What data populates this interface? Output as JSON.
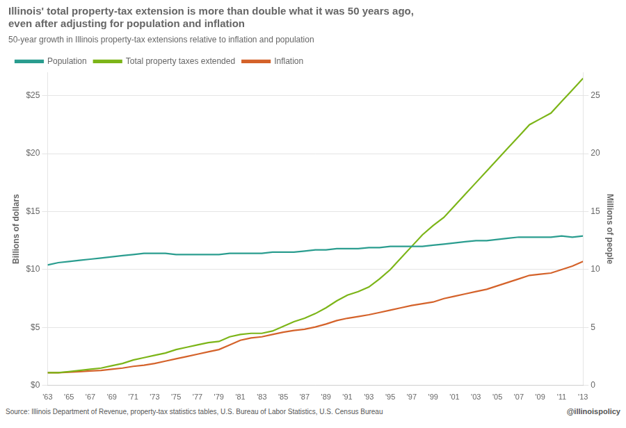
{
  "chart_data": {
    "type": "line",
    "title": "Illinois' total property-tax extension is more than double what it was 50 years ago,\neven after adjusting for population and inflation",
    "subtitle": "50-year growth in Illinois property-tax extensions relative to inflation and population",
    "ylabel": "Billions of dollars",
    "y2label": "Millions of people",
    "annotations": [
      "Source: Illinois Department of Revenue, property-tax statistics tables, U.S. Bureau of Labor Statistics, U.S. Census Bureau",
      "@illinoispolicy"
    ],
    "x": [
      1963,
      1964,
      1965,
      1966,
      1967,
      1968,
      1969,
      1970,
      1971,
      1972,
      1973,
      1974,
      1975,
      1976,
      1977,
      1978,
      1979,
      1980,
      1981,
      1982,
      1983,
      1984,
      1985,
      1986,
      1987,
      1988,
      1989,
      1990,
      1991,
      1992,
      1993,
      1994,
      1995,
      1996,
      1997,
      1998,
      1999,
      2000,
      2001,
      2002,
      2003,
      2004,
      2005,
      2006,
      2007,
      2008,
      2009,
      2010,
      2011,
      2012,
      2013
    ],
    "series": [
      {
        "name": "Population",
        "color": "#2a9d8f",
        "values": [
          10.4,
          10.6,
          10.7,
          10.8,
          10.9,
          11.0,
          11.1,
          11.2,
          11.3,
          11.4,
          11.4,
          11.4,
          11.3,
          11.3,
          11.3,
          11.3,
          11.3,
          11.4,
          11.4,
          11.4,
          11.4,
          11.5,
          11.5,
          11.5,
          11.6,
          11.7,
          11.7,
          11.8,
          11.8,
          11.8,
          11.9,
          11.9,
          12.0,
          12.0,
          12.0,
          12.0,
          12.1,
          12.2,
          12.3,
          12.4,
          12.5,
          12.5,
          12.6,
          12.7,
          12.8,
          12.8,
          12.8,
          12.8,
          12.9,
          12.8,
          12.9
        ]
      },
      {
        "name": "Total property taxes extended",
        "color": "#7cb518",
        "values": [
          1.1,
          1.1,
          1.2,
          1.3,
          1.4,
          1.5,
          1.7,
          1.9,
          2.2,
          2.4,
          2.6,
          2.8,
          3.1,
          3.3,
          3.5,
          3.7,
          3.8,
          4.2,
          4.4,
          4.5,
          4.5,
          4.7,
          5.1,
          5.5,
          5.8,
          6.2,
          6.7,
          7.3,
          7.8,
          8.1,
          8.5,
          9.2,
          10.0,
          11.0,
          12.0,
          13.0,
          13.8,
          14.5,
          15.5,
          16.5,
          17.5,
          18.5,
          19.5,
          20.5,
          21.5,
          22.5,
          23.0,
          23.5,
          24.5,
          25.5,
          26.5
        ]
      },
      {
        "name": "Inflation",
        "color": "#d4622a",
        "values": [
          1.1,
          1.1,
          1.15,
          1.2,
          1.25,
          1.3,
          1.4,
          1.5,
          1.65,
          1.75,
          1.9,
          2.1,
          2.3,
          2.5,
          2.7,
          2.9,
          3.1,
          3.5,
          3.9,
          4.1,
          4.2,
          4.4,
          4.6,
          4.75,
          4.85,
          5.05,
          5.3,
          5.6,
          5.8,
          5.95,
          6.1,
          6.3,
          6.5,
          6.7,
          6.9,
          7.05,
          7.2,
          7.5,
          7.7,
          7.9,
          8.1,
          8.3,
          8.6,
          8.9,
          9.2,
          9.5,
          9.6,
          9.7,
          10.0,
          10.3,
          10.7
        ]
      }
    ],
    "xlim": [
      1963,
      2013
    ],
    "xticks": [
      {
        "value": 1963,
        "label": "'63"
      },
      {
        "value": 1965,
        "label": "'65"
      },
      {
        "value": 1967,
        "label": "'67"
      },
      {
        "value": 1969,
        "label": "'69"
      },
      {
        "value": 1971,
        "label": "'71"
      },
      {
        "value": 1973,
        "label": "'73"
      },
      {
        "value": 1975,
        "label": "'75"
      },
      {
        "value": 1977,
        "label": "'77"
      },
      {
        "value": 1979,
        "label": "'79"
      },
      {
        "value": 1981,
        "label": "'81"
      },
      {
        "value": 1983,
        "label": "'83"
      },
      {
        "value": 1985,
        "label": "'85"
      },
      {
        "value": 1987,
        "label": "'87"
      },
      {
        "value": 1989,
        "label": "'89"
      },
      {
        "value": 1991,
        "label": "'91"
      },
      {
        "value": 1993,
        "label": "'93"
      },
      {
        "value": 1995,
        "label": "'95"
      },
      {
        "value": 1997,
        "label": "'97"
      },
      {
        "value": 1999,
        "label": "'99"
      },
      {
        "value": 2001,
        "label": "'01"
      },
      {
        "value": 2003,
        "label": "'03"
      },
      {
        "value": 2005,
        "label": "'05"
      },
      {
        "value": 2007,
        "label": "'07"
      },
      {
        "value": 2009,
        "label": "'09"
      },
      {
        "value": 2011,
        "label": "'11"
      },
      {
        "value": 2013,
        "label": "'13"
      }
    ],
    "ylim": [
      0,
      27
    ],
    "yticks": [
      {
        "value": 0,
        "label": "$0"
      },
      {
        "value": 5,
        "label": "$5"
      },
      {
        "value": 10,
        "label": "$10"
      },
      {
        "value": 15,
        "label": "$15"
      },
      {
        "value": 20,
        "label": "$20"
      },
      {
        "value": 25,
        "label": "$25"
      }
    ],
    "y2lim": [
      0,
      27
    ],
    "y2ticks": [
      0,
      5,
      10,
      15,
      20,
      25
    ],
    "grid": true,
    "legend": "top"
  }
}
